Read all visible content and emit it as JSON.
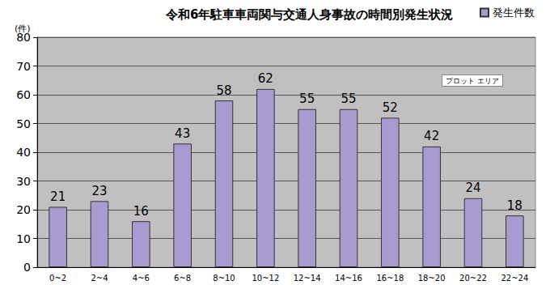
{
  "chart_data": {
    "type": "bar",
    "title": "令和6年駐車車両関与交通人身事故の時間別発生状況",
    "y_label": "(件)",
    "annotation": "プロット エリア",
    "categories": [
      "0~2",
      "2~4",
      "4~6",
      "6~8",
      "8~10",
      "10~12",
      "12~14",
      "14~16",
      "16~18",
      "18~20",
      "20~22",
      "22~24"
    ],
    "series": [
      {
        "name": "発生件数",
        "color": "#a99bd0",
        "values": [
          21,
          23,
          16,
          43,
          58,
          62,
          55,
          55,
          52,
          42,
          24,
          18
        ]
      }
    ],
    "ylim": [
      0,
      80
    ],
    "yticks": [
      0,
      10,
      20,
      30,
      40,
      50,
      60,
      70,
      80
    ],
    "grid": true,
    "legend": "upper right",
    "data_labels": true
  }
}
